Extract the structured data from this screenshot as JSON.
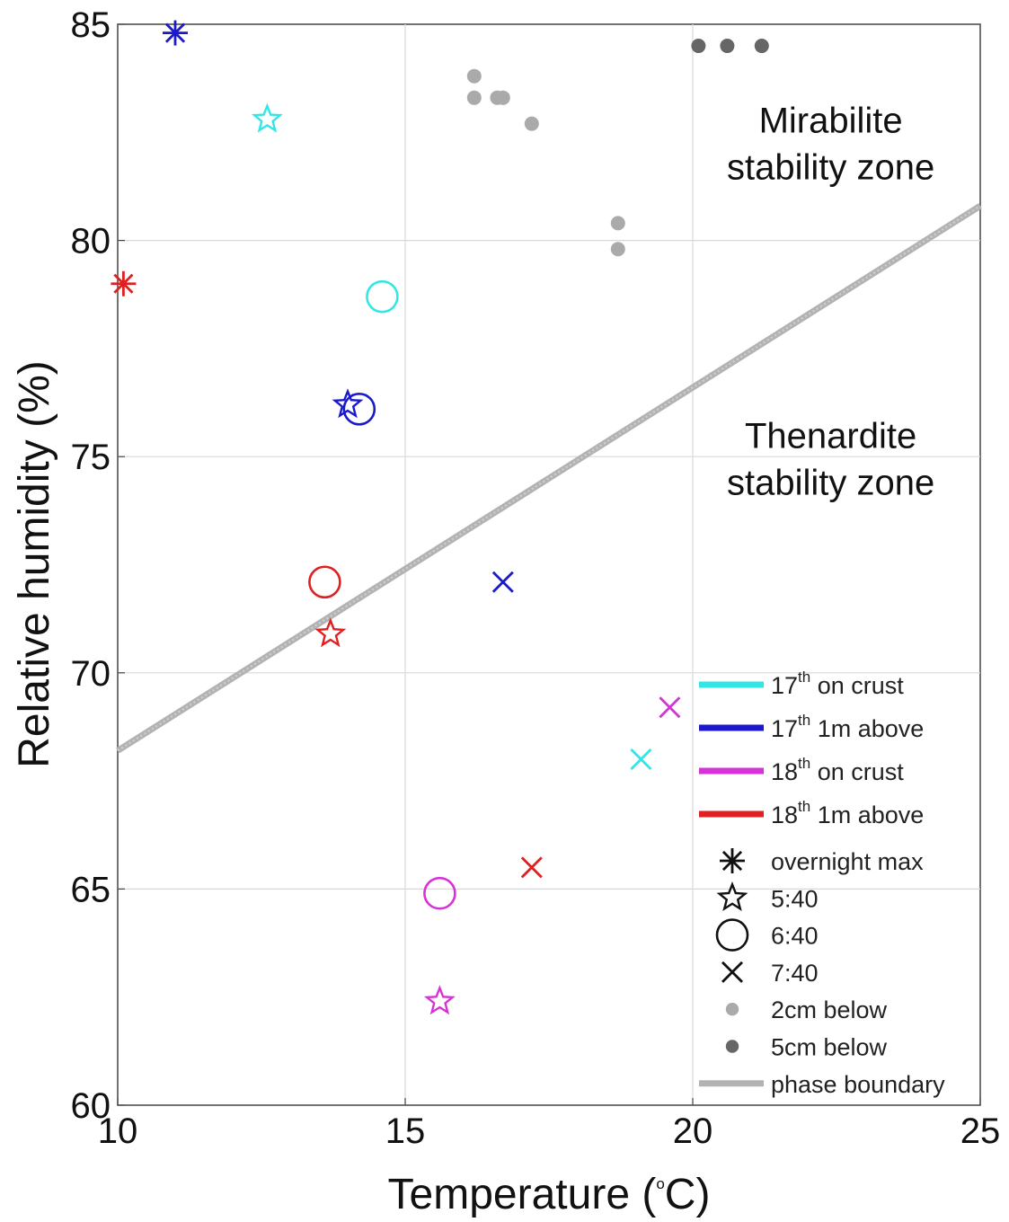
{
  "chart_data": {
    "type": "scatter",
    "xlabel": "Temperature (",
    "xlabel_unit_sup": "o",
    "xlabel_unit_tail": "C)",
    "ylabel": "Relative humidity (%)",
    "xlim": [
      10,
      25
    ],
    "ylim": [
      60,
      85
    ],
    "xticks": [
      "10",
      "15",
      "20",
      "25"
    ],
    "yticks": [
      "60",
      "65",
      "70",
      "75",
      "80",
      "85"
    ],
    "grid": true,
    "legend_position": "bottom-right",
    "annotations": [
      {
        "lines": [
          "Mirabilite",
          "stability zone"
        ],
        "x": 22.4,
        "y": 82.5
      },
      {
        "lines": [
          "Thenardite",
          "stability zone"
        ],
        "x": 22.4,
        "y": 75.2
      }
    ],
    "phase_boundary": {
      "label": "phase boundary",
      "color": "#b3b3b3",
      "x": [
        10,
        25
      ],
      "y": [
        68.2,
        80.8
      ]
    },
    "colors": {
      "17th on crust": "#33e6e6",
      "17th 1m above": "#1a1acc",
      "18th on crust": "#d633d6",
      "18th 1m above": "#e02020",
      "2cm below": "#aaaaaa",
      "5cm below": "#666666"
    },
    "series": [
      {
        "name": "17th on crust",
        "color": "#33e6e6",
        "points": [
          {
            "time": "5:40",
            "marker": "star",
            "x": 12.6,
            "y": 82.8
          },
          {
            "time": "6:40",
            "marker": "circle",
            "x": 14.6,
            "y": 78.7
          },
          {
            "time": "7:40",
            "marker": "x",
            "x": 19.1,
            "y": 68.0
          }
        ]
      },
      {
        "name": "17th 1m above",
        "color": "#1a1acc",
        "points": [
          {
            "time": "overnight max",
            "marker": "asterisk",
            "x": 11.0,
            "y": 84.8
          },
          {
            "time": "5:40",
            "marker": "star",
            "x": 14.0,
            "y": 76.2
          },
          {
            "time": "6:40",
            "marker": "circle",
            "x": 14.2,
            "y": 76.1
          },
          {
            "time": "7:40",
            "marker": "x",
            "x": 16.7,
            "y": 72.1
          }
        ]
      },
      {
        "name": "18th on crust",
        "color": "#d633d6",
        "points": [
          {
            "time": "5:40",
            "marker": "star",
            "x": 15.6,
            "y": 62.4
          },
          {
            "time": "6:40",
            "marker": "circle",
            "x": 15.6,
            "y": 64.9
          },
          {
            "time": "7:40",
            "marker": "x",
            "x": 19.6,
            "y": 69.2
          }
        ]
      },
      {
        "name": "18th 1m above",
        "color": "#e02020",
        "points": [
          {
            "time": "overnight max",
            "marker": "asterisk",
            "x": 10.1,
            "y": 79.0
          },
          {
            "time": "5:40",
            "marker": "star",
            "x": 13.7,
            "y": 70.9
          },
          {
            "time": "6:40",
            "marker": "circle",
            "x": 13.6,
            "y": 72.1
          },
          {
            "time": "7:40",
            "marker": "x",
            "x": 17.2,
            "y": 65.5
          }
        ]
      },
      {
        "name": "2cm below",
        "color": "#aaaaaa",
        "marker": "dot",
        "points": [
          {
            "x": 16.2,
            "y": 83.8
          },
          {
            "x": 16.2,
            "y": 83.3
          },
          {
            "x": 16.6,
            "y": 83.3
          },
          {
            "x": 16.7,
            "y": 83.3
          },
          {
            "x": 17.2,
            "y": 82.7
          },
          {
            "x": 18.7,
            "y": 80.4
          },
          {
            "x": 18.7,
            "y": 79.8
          }
        ]
      },
      {
        "name": "5cm below",
        "color": "#666666",
        "marker": "dot",
        "points": [
          {
            "x": 20.1,
            "y": 84.5
          },
          {
            "x": 20.6,
            "y": 84.5
          },
          {
            "x": 21.2,
            "y": 84.5
          }
        ]
      }
    ],
    "legend": {
      "lines": [
        {
          "day": "17",
          "sup": "th",
          "rest": " on crust",
          "color": "#33e6e6"
        },
        {
          "day": "17",
          "sup": "th",
          "rest": " 1m above",
          "color": "#1a1acc"
        },
        {
          "day": "18",
          "sup": "th",
          "rest": " on crust",
          "color": "#d633d6"
        },
        {
          "day": "18",
          "sup": "th",
          "rest": " 1m above",
          "color": "#e02020"
        }
      ],
      "markers": [
        {
          "symbol": "asterisk",
          "label": "overnight max",
          "color": "#111111"
        },
        {
          "symbol": "star",
          "label": "5:40",
          "color": "#111111"
        },
        {
          "symbol": "circle",
          "label": "6:40",
          "color": "#111111"
        },
        {
          "symbol": "x",
          "label": "7:40",
          "color": "#111111"
        },
        {
          "symbol": "dot",
          "label": "2cm below",
          "color": "#aaaaaa"
        },
        {
          "symbol": "dot",
          "label": "5cm below",
          "color": "#666666"
        },
        {
          "symbol": "band",
          "label": "phase boundary",
          "color": "#b3b3b3"
        }
      ]
    }
  }
}
